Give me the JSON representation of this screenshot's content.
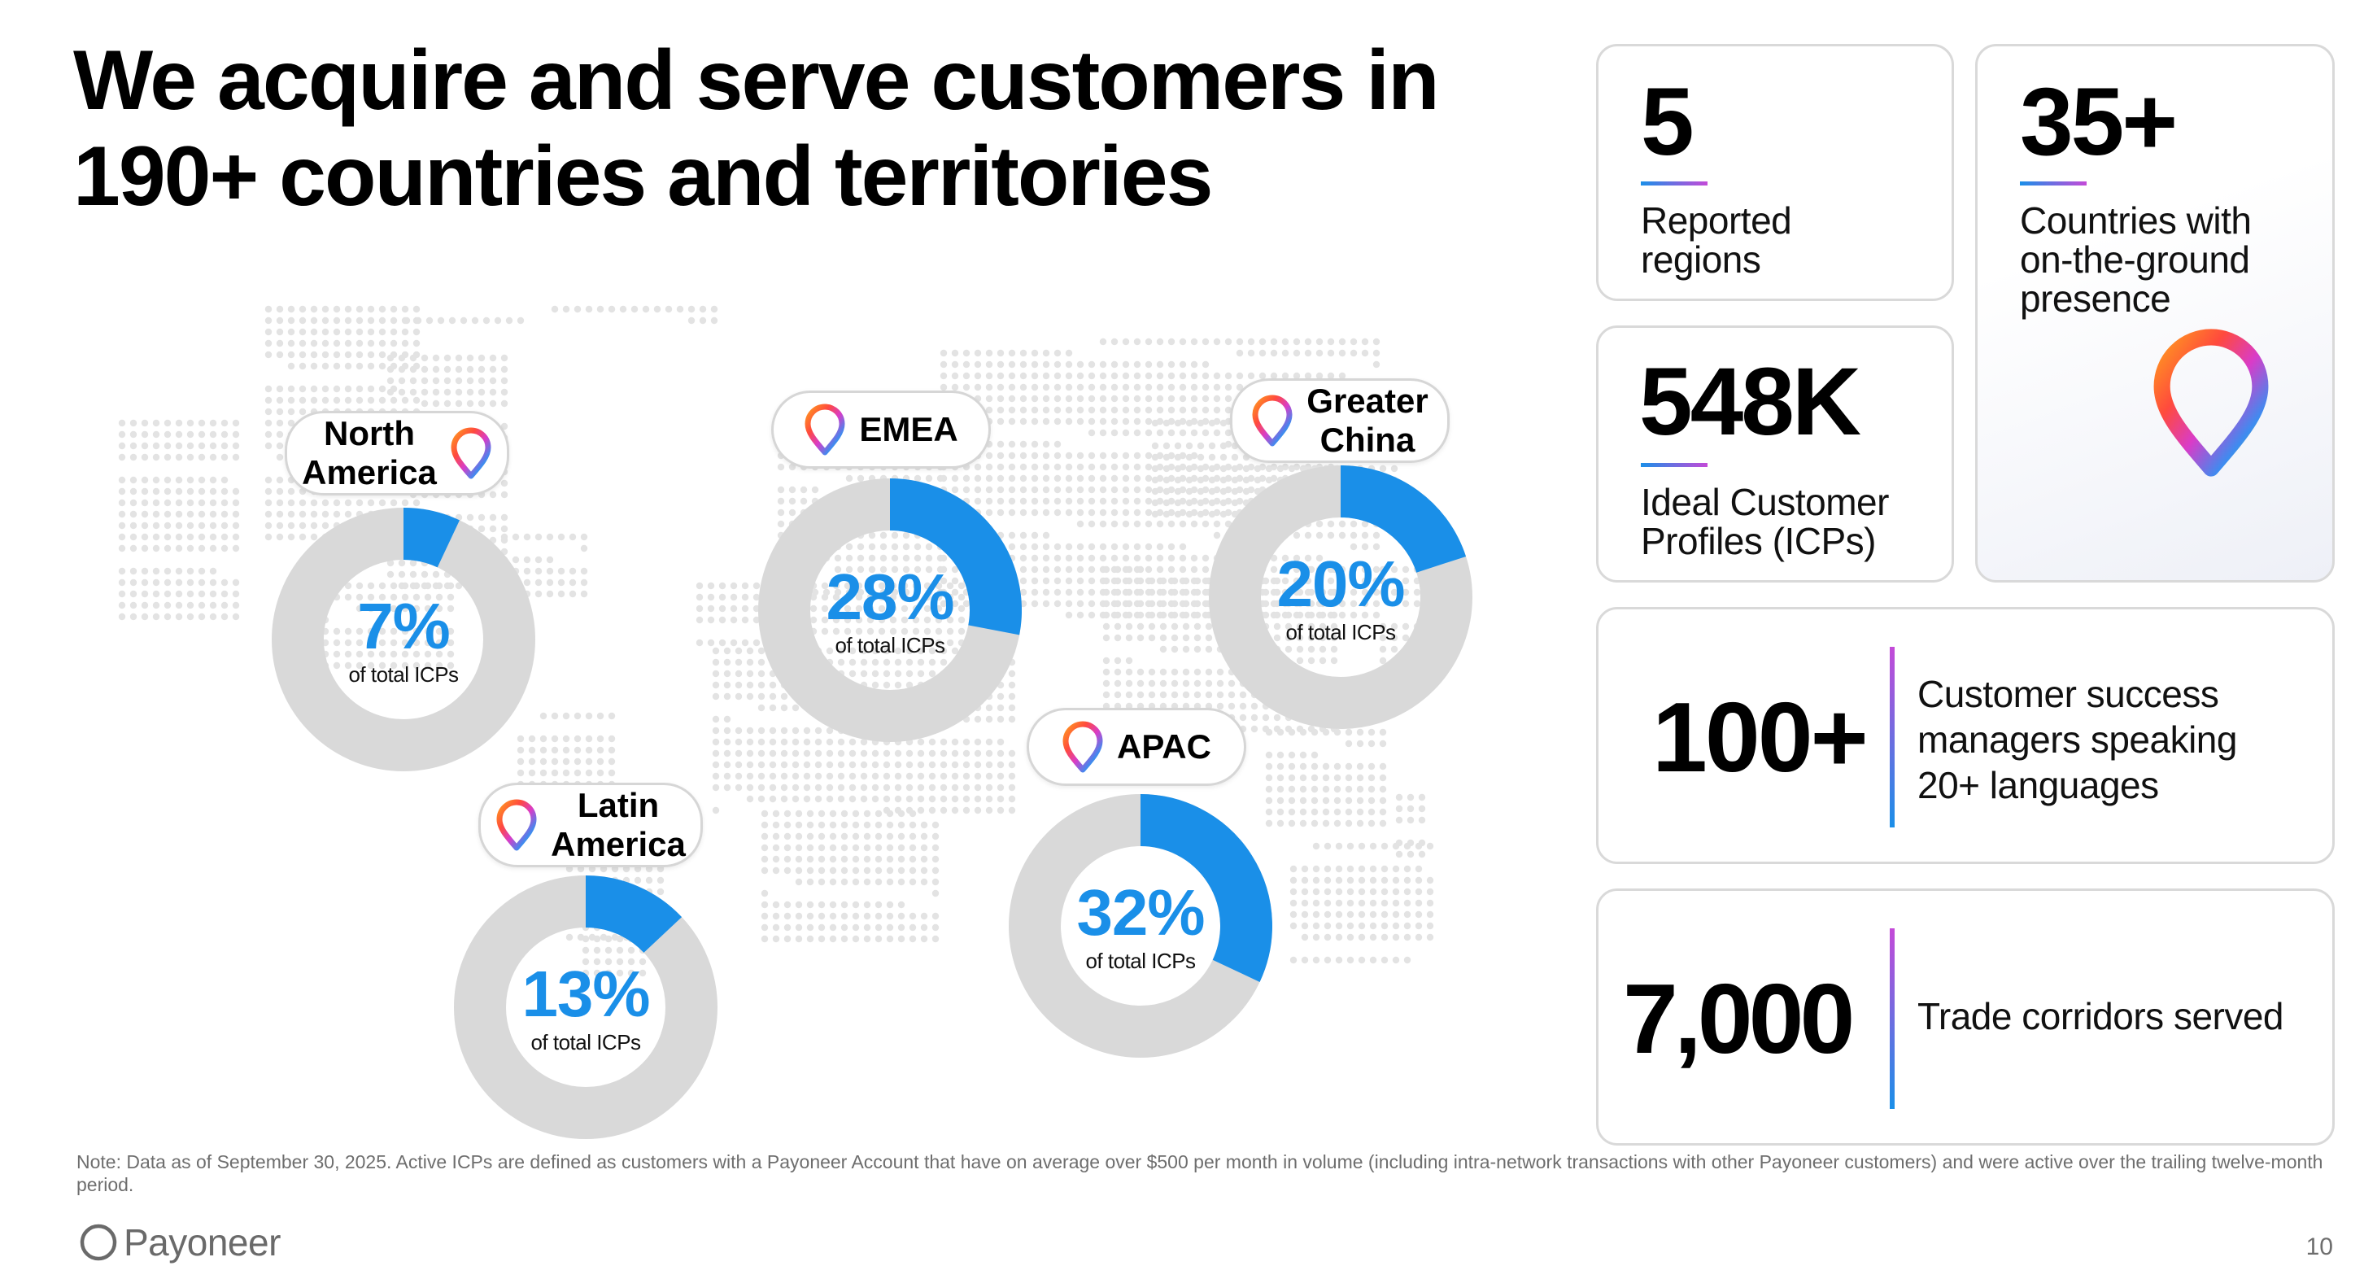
{
  "title": "We acquire and serve customers in 190+ countries and territories",
  "colors": {
    "accent_blue": "#1a8fe8",
    "donut_track": "#d9d9d9",
    "card_border": "#d9d9d9",
    "gradient_pink": "#c44ad8"
  },
  "regions": [
    {
      "label": "North\nAmerica",
      "percent": 7,
      "pct_text": "7%",
      "sub": "of total ICPs",
      "icon": "location-pin-icon"
    },
    {
      "label": "EMEA",
      "percent": 28,
      "pct_text": "28%",
      "sub": "of total ICPs",
      "icon": "location-pin-icon"
    },
    {
      "label": "Greater\nChina",
      "percent": 20,
      "pct_text": "20%",
      "sub": "of total ICPs",
      "icon": "location-pin-icon"
    },
    {
      "label": "Latin\nAmerica",
      "percent": 13,
      "pct_text": "13%",
      "sub": "of total ICPs",
      "icon": "location-pin-icon"
    },
    {
      "label": "APAC",
      "percent": 32,
      "pct_text": "32%",
      "sub": "of total ICPs",
      "icon": "location-pin-icon"
    }
  ],
  "stats": {
    "regions": {
      "value": "5",
      "label": "Reported\nregions"
    },
    "presence": {
      "value": "35+",
      "label": "Countries with\non-the-ground\npresence",
      "icon": "location-pin-icon"
    },
    "icps": {
      "value": "548K",
      "label": "Ideal Customer\nProfiles (ICPs)"
    },
    "csm": {
      "value": "100+",
      "label": "Customer success\nmanagers speaking\n20+ languages"
    },
    "corridors": {
      "value": "7,000",
      "label": "Trade corridors served"
    }
  },
  "footnote": "Note: Data as of September 30, 2025. Active ICPs are defined as customers with a Payoneer Account that have on average over $500 per month in volume (including intra-network transactions with other Payoneer customers) and were active over the trailing twelve-month period.",
  "brand": {
    "name": "Payoneer",
    "icon": "payoneer-ring-icon"
  },
  "page_number": "10"
}
